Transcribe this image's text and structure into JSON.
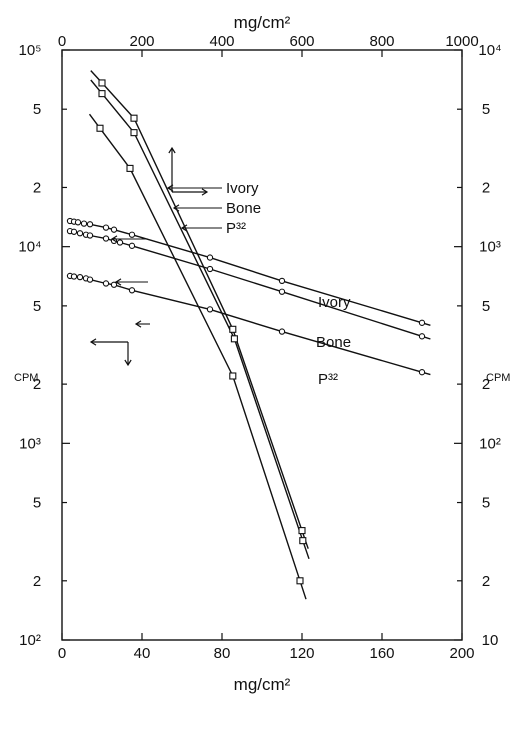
{
  "chart_data": {
    "type": "scatter",
    "x_scale": "linear",
    "y_scale": "log",
    "grid": false,
    "legend": "none",
    "top_axis": {
      "label": "mg/cm²",
      "range": [
        0,
        1000
      ],
      "ticks": [
        "0",
        "200",
        "400",
        "600",
        "800",
        "1000"
      ]
    },
    "bottom_axis": {
      "label": "mg/cm²",
      "range": [
        0,
        200
      ],
      "ticks": [
        "0",
        "40",
        "80",
        "120",
        "160",
        "200"
      ]
    },
    "left_axis": {
      "label": "CPM",
      "range": [
        100,
        100000
      ],
      "major_ticks": [
        {
          "v": 100,
          "label": "10²"
        },
        {
          "v": 1000,
          "label": "10³"
        },
        {
          "v": 10000,
          "label": "10⁴"
        },
        {
          "v": 100000,
          "label": "10⁵"
        }
      ],
      "minor_ticks": [
        {
          "v": 200,
          "label": "2"
        },
        {
          "v": 500,
          "label": "5"
        },
        {
          "v": 2000,
          "label": "2"
        },
        {
          "v": 5000,
          "label": "5"
        },
        {
          "v": 20000,
          "label": "2"
        },
        {
          "v": 50000,
          "label": "5"
        }
      ]
    },
    "right_axis": {
      "label": "CPM",
      "range": [
        10,
        10000
      ],
      "major_ticks": [
        {
          "v": 10,
          "label": "10"
        },
        {
          "v": 100,
          "label": "10²"
        },
        {
          "v": 1000,
          "label": "10³"
        },
        {
          "v": 10000,
          "label": "10⁴"
        }
      ],
      "minor_ticks": [
        {
          "v": 20,
          "label": "2"
        },
        {
          "v": 50,
          "label": "5"
        },
        {
          "v": 200,
          "label": "2"
        },
        {
          "v": 500,
          "label": "5"
        },
        {
          "v": 2000,
          "label": "2"
        },
        {
          "v": 5000,
          "label": "5"
        }
      ]
    },
    "series": [
      {
        "group": "bottom-axis, left-axis",
        "marker": "circle",
        "label_text": "Ivory",
        "points": [
          [
            4,
            13500
          ],
          [
            6,
            13400
          ],
          [
            8,
            13300
          ],
          [
            11,
            13100
          ],
          [
            14,
            13000
          ],
          [
            22,
            12500
          ],
          [
            26,
            12200
          ],
          [
            35,
            11500
          ],
          [
            74,
            8800
          ],
          [
            110,
            6700
          ],
          [
            180,
            4100
          ]
        ]
      },
      {
        "group": "bottom-axis, left-axis",
        "marker": "circle",
        "label_text": "Bone",
        "points": [
          [
            4,
            12000
          ],
          [
            6,
            11900
          ],
          [
            9,
            11700
          ],
          [
            12,
            11500
          ],
          [
            14,
            11400
          ],
          [
            22,
            11000
          ],
          [
            26,
            10700
          ],
          [
            29,
            10500
          ],
          [
            35,
            10100
          ],
          [
            74,
            7700
          ],
          [
            110,
            5900
          ],
          [
            180,
            3500
          ]
        ]
      },
      {
        "group": "bottom-axis, left-axis",
        "marker": "circle",
        "label_text": "P³²",
        "points": [
          [
            4,
            7100
          ],
          [
            6,
            7050
          ],
          [
            9,
            7000
          ],
          [
            12,
            6900
          ],
          [
            14,
            6800
          ],
          [
            22,
            6500
          ],
          [
            26,
            6400
          ],
          [
            35,
            6000
          ],
          [
            74,
            4800
          ],
          [
            110,
            3700
          ],
          [
            180,
            2300
          ]
        ]
      },
      {
        "group": "top-axis, right-axis",
        "marker": "square",
        "label_text": "Ivory",
        "points": [
          [
            100,
            6800
          ],
          [
            180,
            4500
          ],
          [
            427,
            380
          ],
          [
            600,
            36
          ]
        ]
      },
      {
        "group": "top-axis, right-axis",
        "marker": "square",
        "label_text": "Bone",
        "points": [
          [
            100,
            6000
          ],
          [
            180,
            3800
          ],
          [
            431,
            340
          ],
          [
            602,
            32
          ]
        ]
      },
      {
        "group": "top-axis, right-axis",
        "marker": "square",
        "label_text": "P³²",
        "points": [
          [
            95,
            4000
          ],
          [
            170,
            2500
          ],
          [
            427,
            220
          ],
          [
            595,
            20
          ]
        ]
      }
    ]
  }
}
